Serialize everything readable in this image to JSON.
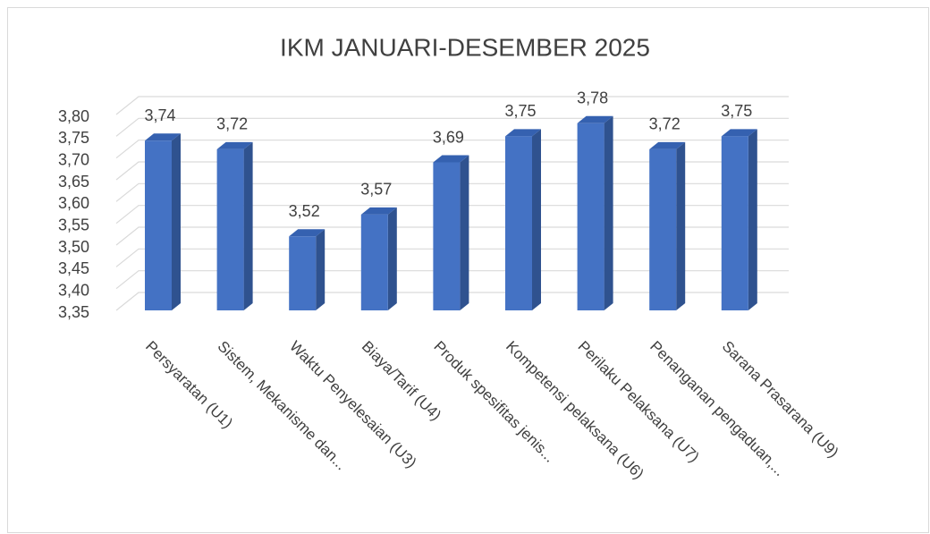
{
  "chart_data": {
    "type": "bar3d",
    "title": "IKM JANUARI-DESEMBER 2025",
    "categories": [
      "Persyaratan (U1)",
      "Sistem, Mekanisme dan...",
      "Waktu Penyelesaian (U3)",
      "Biaya/Tarif (U4)",
      "Produk spesifitas jenis...",
      "Kompetensi pelaksana (U6)",
      "Perilaku Pelaksana (U7)",
      "Penanganan pengaduan,...",
      "Sarana Prasarana (U9)"
    ],
    "values": [
      3.74,
      3.72,
      3.52,
      3.57,
      3.69,
      3.75,
      3.78,
      3.72,
      3.75
    ],
    "value_labels": [
      "3,74",
      "3,72",
      "3,52",
      "3,57",
      "3,69",
      "3,75",
      "3,78",
      "3,72",
      "3,75"
    ],
    "color": "#4472c4",
    "ylim": [
      3.35,
      3.8
    ],
    "yticks": [
      {
        "value": 3.35,
        "label": "3,35"
      },
      {
        "value": 3.4,
        "label": "3,40"
      },
      {
        "value": 3.45,
        "label": "3,45"
      },
      {
        "value": 3.5,
        "label": "3,50"
      },
      {
        "value": 3.55,
        "label": "3,55"
      },
      {
        "value": 3.6,
        "label": "3,60"
      },
      {
        "value": 3.65,
        "label": "3,65"
      },
      {
        "value": 3.7,
        "label": "3,70"
      },
      {
        "value": 3.75,
        "label": "3,75"
      },
      {
        "value": 3.8,
        "label": "3,80"
      }
    ],
    "grid": true
  }
}
